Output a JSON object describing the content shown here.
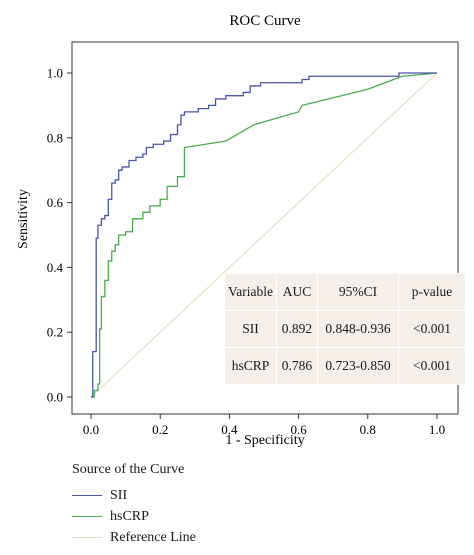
{
  "chart_data": {
    "type": "line",
    "title": "ROC Curve",
    "xlabel": "1 - Specificity",
    "ylabel": "Sensitivity",
    "xlim": [
      0,
      1
    ],
    "ylim": [
      0,
      1
    ],
    "xticks": [
      "0.0",
      "0.2",
      "0.4",
      "0.6",
      "0.8",
      "1.0"
    ],
    "yticks": [
      "0.0",
      "0.2",
      "0.4",
      "0.6",
      "0.8",
      "1.0"
    ],
    "grid": false,
    "series": [
      {
        "name": "SII",
        "color": "#4a55a8",
        "x": [
          0,
          0.005,
          0.005,
          0.015,
          0.015,
          0.02,
          0.02,
          0.03,
          0.03,
          0.04,
          0.04,
          0.05,
          0.05,
          0.06,
          0.06,
          0.07,
          0.07,
          0.08,
          0.08,
          0.09,
          0.09,
          0.11,
          0.11,
          0.13,
          0.13,
          0.15,
          0.15,
          0.16,
          0.16,
          0.18,
          0.18,
          0.21,
          0.21,
          0.23,
          0.23,
          0.25,
          0.25,
          0.26,
          0.26,
          0.27,
          0.27,
          0.31,
          0.31,
          0.34,
          0.34,
          0.36,
          0.36,
          0.39,
          0.39,
          0.44,
          0.44,
          0.46,
          0.46,
          0.49,
          0.49,
          0.61,
          0.61,
          0.63,
          0.63,
          0.89,
          0.89,
          1.0
        ],
        "y": [
          0,
          0,
          0.14,
          0.14,
          0.49,
          0.49,
          0.53,
          0.53,
          0.55,
          0.55,
          0.56,
          0.56,
          0.61,
          0.61,
          0.66,
          0.66,
          0.67,
          0.67,
          0.7,
          0.7,
          0.71,
          0.71,
          0.73,
          0.73,
          0.74,
          0.74,
          0.75,
          0.75,
          0.77,
          0.77,
          0.78,
          0.78,
          0.79,
          0.79,
          0.81,
          0.81,
          0.84,
          0.84,
          0.87,
          0.87,
          0.88,
          0.88,
          0.89,
          0.89,
          0.9,
          0.9,
          0.92,
          0.92,
          0.93,
          0.93,
          0.94,
          0.94,
          0.96,
          0.96,
          0.97,
          0.97,
          0.98,
          0.98,
          0.99,
          0.99,
          1.0,
          1.0
        ]
      },
      {
        "name": "hsCRP",
        "color": "#4aab4f",
        "x": [
          0,
          0.01,
          0.01,
          0.02,
          0.02,
          0.025,
          0.025,
          0.03,
          0.03,
          0.04,
          0.04,
          0.05,
          0.05,
          0.06,
          0.06,
          0.07,
          0.07,
          0.08,
          0.08,
          0.1,
          0.1,
          0.12,
          0.12,
          0.15,
          0.15,
          0.17,
          0.17,
          0.2,
          0.2,
          0.22,
          0.22,
          0.25,
          0.25,
          0.27,
          0.27,
          0.39,
          0.47,
          0.6,
          0.61,
          0.8,
          0.9,
          1.0
        ],
        "y": [
          0,
          0,
          0.02,
          0.02,
          0.04,
          0.04,
          0.21,
          0.21,
          0.31,
          0.31,
          0.36,
          0.36,
          0.42,
          0.42,
          0.45,
          0.45,
          0.47,
          0.47,
          0.5,
          0.5,
          0.51,
          0.51,
          0.55,
          0.55,
          0.57,
          0.57,
          0.59,
          0.59,
          0.61,
          0.61,
          0.65,
          0.65,
          0.68,
          0.68,
          0.77,
          0.79,
          0.84,
          0.88,
          0.9,
          0.95,
          0.99,
          1.0
        ]
      },
      {
        "name": "Reference Line",
        "color": "#e2dfbf",
        "x": [
          0,
          1
        ],
        "y": [
          0,
          1
        ]
      }
    ],
    "legend": {
      "title": "Source of the Curve",
      "position": "bottom-left"
    },
    "table": {
      "headers": [
        "Variable",
        "AUC",
        "95%CI",
        "p-value"
      ],
      "rows": [
        [
          "SII",
          "0.892",
          "0.848-0.936",
          "<0.001"
        ],
        [
          "hsCRP",
          "0.786",
          "0.723-0.850",
          "<0.001"
        ]
      ],
      "background": "#f4efe9"
    }
  }
}
